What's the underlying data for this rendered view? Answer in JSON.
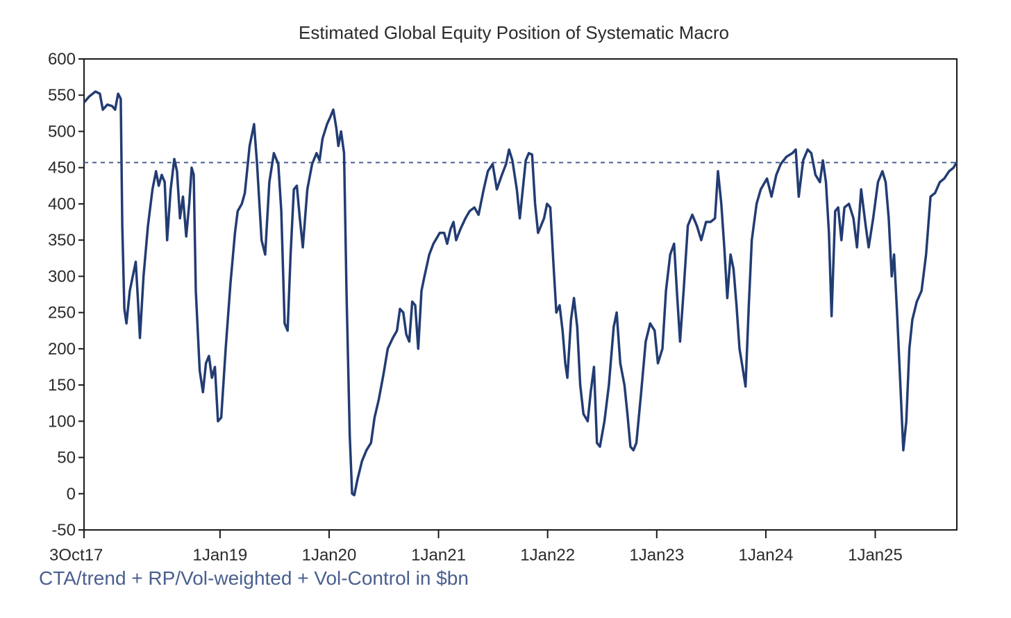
{
  "chart_data": {
    "type": "line",
    "title": "Estimated Global Equity Position of Systematic Macro",
    "xlabel": "",
    "ylabel": "",
    "unit": "$bn",
    "ylim": [
      -50,
      600
    ],
    "yticks": [
      -50,
      0,
      50,
      100,
      150,
      200,
      250,
      300,
      350,
      400,
      450,
      500,
      550,
      600
    ],
    "xlim": [
      "2017-10-03",
      "2025-10-01"
    ],
    "xticks": [
      {
        "date": "2017-10-03",
        "label": "3Oct17"
      },
      {
        "date": "2019-01-01",
        "label": "1Jan19"
      },
      {
        "date": "2020-01-01",
        "label": "1Jan20"
      },
      {
        "date": "2021-01-01",
        "label": "1Jan21"
      },
      {
        "date": "2022-01-01",
        "label": "1Jan22"
      },
      {
        "date": "2023-01-01",
        "label": "1Jan23"
      },
      {
        "date": "2024-01-01",
        "label": "1Jan24"
      },
      {
        "date": "2025-01-01",
        "label": "1Jan25"
      }
    ],
    "reference_line": {
      "y": 457,
      "style": "dashed"
    },
    "grid": false,
    "legend": "none",
    "footnote": "CTA/trend + RP/Vol-weighted + Vol-Control in $bn",
    "series": [
      {
        "points": [
          [
            "2017-10-03",
            540
          ],
          [
            "2017-10-20",
            548
          ],
          [
            "2017-11-10",
            555
          ],
          [
            "2017-11-25",
            552
          ],
          [
            "2017-12-05",
            530
          ],
          [
            "2017-12-20",
            537
          ],
          [
            "2018-01-05",
            535
          ],
          [
            "2018-01-15",
            530
          ],
          [
            "2018-01-25",
            552
          ],
          [
            "2018-02-03",
            545
          ],
          [
            "2018-02-08",
            370
          ],
          [
            "2018-02-15",
            255
          ],
          [
            "2018-02-22",
            235
          ],
          [
            "2018-03-05",
            280
          ],
          [
            "2018-03-15",
            300
          ],
          [
            "2018-03-25",
            320
          ],
          [
            "2018-04-01",
            270
          ],
          [
            "2018-04-08",
            215
          ],
          [
            "2018-04-20",
            300
          ],
          [
            "2018-05-05",
            370
          ],
          [
            "2018-05-20",
            420
          ],
          [
            "2018-06-01",
            445
          ],
          [
            "2018-06-10",
            425
          ],
          [
            "2018-06-20",
            440
          ],
          [
            "2018-06-30",
            430
          ],
          [
            "2018-07-08",
            350
          ],
          [
            "2018-07-20",
            420
          ],
          [
            "2018-08-01",
            462
          ],
          [
            "2018-08-10",
            445
          ],
          [
            "2018-08-20",
            380
          ],
          [
            "2018-08-30",
            410
          ],
          [
            "2018-09-10",
            355
          ],
          [
            "2018-09-20",
            400
          ],
          [
            "2018-09-28",
            450
          ],
          [
            "2018-10-05",
            440
          ],
          [
            "2018-10-12",
            280
          ],
          [
            "2018-10-25",
            170
          ],
          [
            "2018-11-05",
            140
          ],
          [
            "2018-11-15",
            180
          ],
          [
            "2018-11-25",
            190
          ],
          [
            "2018-12-05",
            160
          ],
          [
            "2018-12-15",
            175
          ],
          [
            "2018-12-25",
            100
          ],
          [
            "2019-01-05",
            105
          ],
          [
            "2019-01-20",
            200
          ],
          [
            "2019-02-05",
            290
          ],
          [
            "2019-02-20",
            360
          ],
          [
            "2019-03-01",
            390
          ],
          [
            "2019-03-15",
            400
          ],
          [
            "2019-03-25",
            415
          ],
          [
            "2019-04-10",
            480
          ],
          [
            "2019-04-25",
            510
          ],
          [
            "2019-05-05",
            455
          ],
          [
            "2019-05-20",
            350
          ],
          [
            "2019-06-01",
            330
          ],
          [
            "2019-06-15",
            430
          ],
          [
            "2019-06-30",
            470
          ],
          [
            "2019-07-15",
            455
          ],
          [
            "2019-07-25",
            390
          ],
          [
            "2019-08-05",
            235
          ],
          [
            "2019-08-15",
            225
          ],
          [
            "2019-08-25",
            330
          ],
          [
            "2019-09-05",
            420
          ],
          [
            "2019-09-15",
            425
          ],
          [
            "2019-09-25",
            380
          ],
          [
            "2019-10-05",
            340
          ],
          [
            "2019-10-20",
            420
          ],
          [
            "2019-11-05",
            455
          ],
          [
            "2019-11-20",
            470
          ],
          [
            "2019-11-30",
            460
          ],
          [
            "2019-12-10",
            490
          ],
          [
            "2019-12-25",
            510
          ],
          [
            "2020-01-05",
            520
          ],
          [
            "2020-01-15",
            530
          ],
          [
            "2020-01-25",
            505
          ],
          [
            "2020-02-01",
            480
          ],
          [
            "2020-02-10",
            500
          ],
          [
            "2020-02-20",
            470
          ],
          [
            "2020-02-28",
            280
          ],
          [
            "2020-03-10",
            80
          ],
          [
            "2020-03-18",
            0
          ],
          [
            "2020-03-25",
            -2
          ],
          [
            "2020-04-05",
            20
          ],
          [
            "2020-04-20",
            45
          ],
          [
            "2020-05-05",
            60
          ],
          [
            "2020-05-20",
            70
          ],
          [
            "2020-06-01",
            105
          ],
          [
            "2020-06-15",
            130
          ],
          [
            "2020-07-01",
            165
          ],
          [
            "2020-07-15",
            200
          ],
          [
            "2020-08-01",
            215
          ],
          [
            "2020-08-15",
            225
          ],
          [
            "2020-08-25",
            255
          ],
          [
            "2020-09-05",
            250
          ],
          [
            "2020-09-15",
            220
          ],
          [
            "2020-09-25",
            210
          ],
          [
            "2020-10-05",
            265
          ],
          [
            "2020-10-15",
            260
          ],
          [
            "2020-10-25",
            200
          ],
          [
            "2020-11-05",
            280
          ],
          [
            "2020-11-15",
            300
          ],
          [
            "2020-12-01",
            330
          ],
          [
            "2020-12-15",
            345
          ],
          [
            "2021-01-05",
            360
          ],
          [
            "2021-01-20",
            360
          ],
          [
            "2021-01-30",
            345
          ],
          [
            "2021-02-10",
            365
          ],
          [
            "2021-02-20",
            375
          ],
          [
            "2021-03-01",
            350
          ],
          [
            "2021-03-15",
            365
          ],
          [
            "2021-04-01",
            380
          ],
          [
            "2021-04-15",
            390
          ],
          [
            "2021-05-01",
            395
          ],
          [
            "2021-05-15",
            385
          ],
          [
            "2021-06-01",
            420
          ],
          [
            "2021-06-15",
            445
          ],
          [
            "2021-07-01",
            455
          ],
          [
            "2021-07-15",
            420
          ],
          [
            "2021-08-01",
            440
          ],
          [
            "2021-08-15",
            455
          ],
          [
            "2021-08-25",
            475
          ],
          [
            "2021-09-05",
            460
          ],
          [
            "2021-09-20",
            420
          ],
          [
            "2021-09-30",
            380
          ],
          [
            "2021-10-10",
            420
          ],
          [
            "2021-10-20",
            460
          ],
          [
            "2021-10-30",
            470
          ],
          [
            "2021-11-10",
            468
          ],
          [
            "2021-11-20",
            400
          ],
          [
            "2021-11-30",
            360
          ],
          [
            "2021-12-10",
            370
          ],
          [
            "2021-12-20",
            380
          ],
          [
            "2021-12-30",
            400
          ],
          [
            "2022-01-10",
            395
          ],
          [
            "2022-01-20",
            320
          ],
          [
            "2022-01-30",
            250
          ],
          [
            "2022-02-10",
            260
          ],
          [
            "2022-02-20",
            225
          ],
          [
            "2022-03-01",
            180
          ],
          [
            "2022-03-08",
            160
          ],
          [
            "2022-03-20",
            240
          ],
          [
            "2022-03-30",
            270
          ],
          [
            "2022-04-10",
            230
          ],
          [
            "2022-04-20",
            150
          ],
          [
            "2022-05-01",
            110
          ],
          [
            "2022-05-15",
            100
          ],
          [
            "2022-05-25",
            140
          ],
          [
            "2022-06-05",
            175
          ],
          [
            "2022-06-15",
            70
          ],
          [
            "2022-06-25",
            65
          ],
          [
            "2022-07-10",
            100
          ],
          [
            "2022-07-25",
            150
          ],
          [
            "2022-08-10",
            230
          ],
          [
            "2022-08-20",
            250
          ],
          [
            "2022-09-01",
            180
          ],
          [
            "2022-09-15",
            150
          ],
          [
            "2022-09-25",
            110
          ],
          [
            "2022-10-05",
            65
          ],
          [
            "2022-10-15",
            60
          ],
          [
            "2022-10-25",
            70
          ],
          [
            "2022-11-10",
            140
          ],
          [
            "2022-11-25",
            210
          ],
          [
            "2022-12-10",
            235
          ],
          [
            "2022-12-25",
            225
          ],
          [
            "2023-01-05",
            180
          ],
          [
            "2023-01-20",
            200
          ],
          [
            "2023-02-01",
            280
          ],
          [
            "2023-02-15",
            330
          ],
          [
            "2023-02-28",
            345
          ],
          [
            "2023-03-10",
            275
          ],
          [
            "2023-03-20",
            210
          ],
          [
            "2023-04-01",
            280
          ],
          [
            "2023-04-15",
            370
          ],
          [
            "2023-04-30",
            385
          ],
          [
            "2023-05-15",
            370
          ],
          [
            "2023-05-30",
            350
          ],
          [
            "2023-06-15",
            375
          ],
          [
            "2023-06-30",
            375
          ],
          [
            "2023-07-15",
            380
          ],
          [
            "2023-07-25",
            445
          ],
          [
            "2023-08-05",
            400
          ],
          [
            "2023-08-15",
            340
          ],
          [
            "2023-08-25",
            270
          ],
          [
            "2023-09-05",
            330
          ],
          [
            "2023-09-15",
            310
          ],
          [
            "2023-09-25",
            260
          ],
          [
            "2023-10-05",
            200
          ],
          [
            "2023-10-15",
            175
          ],
          [
            "2023-10-25",
            148
          ],
          [
            "2023-11-05",
            260
          ],
          [
            "2023-11-15",
            350
          ],
          [
            "2023-12-01",
            400
          ],
          [
            "2023-12-15",
            420
          ],
          [
            "2024-01-05",
            435
          ],
          [
            "2024-01-20",
            410
          ],
          [
            "2024-02-05",
            440
          ],
          [
            "2024-02-20",
            455
          ],
          [
            "2024-03-10",
            465
          ],
          [
            "2024-03-30",
            470
          ],
          [
            "2024-04-10",
            475
          ],
          [
            "2024-04-20",
            410
          ],
          [
            "2024-05-05",
            460
          ],
          [
            "2024-05-20",
            475
          ],
          [
            "2024-06-01",
            470
          ],
          [
            "2024-06-15",
            440
          ],
          [
            "2024-06-30",
            430
          ],
          [
            "2024-07-10",
            460
          ],
          [
            "2024-07-20",
            430
          ],
          [
            "2024-07-30",
            360
          ],
          [
            "2024-08-08",
            245
          ],
          [
            "2024-08-20",
            390
          ],
          [
            "2024-08-30",
            395
          ],
          [
            "2024-09-10",
            350
          ],
          [
            "2024-09-20",
            395
          ],
          [
            "2024-10-05",
            400
          ],
          [
            "2024-10-20",
            380
          ],
          [
            "2024-11-01",
            340
          ],
          [
            "2024-11-15",
            420
          ],
          [
            "2024-11-30",
            370
          ],
          [
            "2024-12-10",
            340
          ],
          [
            "2024-12-25",
            380
          ],
          [
            "2025-01-10",
            430
          ],
          [
            "2025-01-25",
            445
          ],
          [
            "2025-02-05",
            430
          ],
          [
            "2025-02-15",
            380
          ],
          [
            "2025-02-25",
            300
          ],
          [
            "2025-03-05",
            330
          ],
          [
            "2025-03-15",
            250
          ],
          [
            "2025-03-25",
            160
          ],
          [
            "2025-04-05",
            60
          ],
          [
            "2025-04-15",
            100
          ],
          [
            "2025-04-25",
            200
          ],
          [
            "2025-05-05",
            240
          ],
          [
            "2025-05-20",
            265
          ],
          [
            "2025-06-05",
            280
          ],
          [
            "2025-06-20",
            330
          ],
          [
            "2025-07-05",
            410
          ],
          [
            "2025-07-20",
            415
          ],
          [
            "2025-08-05",
            430
          ],
          [
            "2025-08-20",
            435
          ],
          [
            "2025-09-05",
            445
          ],
          [
            "2025-09-20",
            450
          ],
          [
            "2025-10-01",
            458
          ]
        ]
      }
    ]
  },
  "colors": {
    "line": "#223c73",
    "reference": "#4a5f8f",
    "axis": "#1a1a1a",
    "footnote": "#4a5f8f"
  }
}
